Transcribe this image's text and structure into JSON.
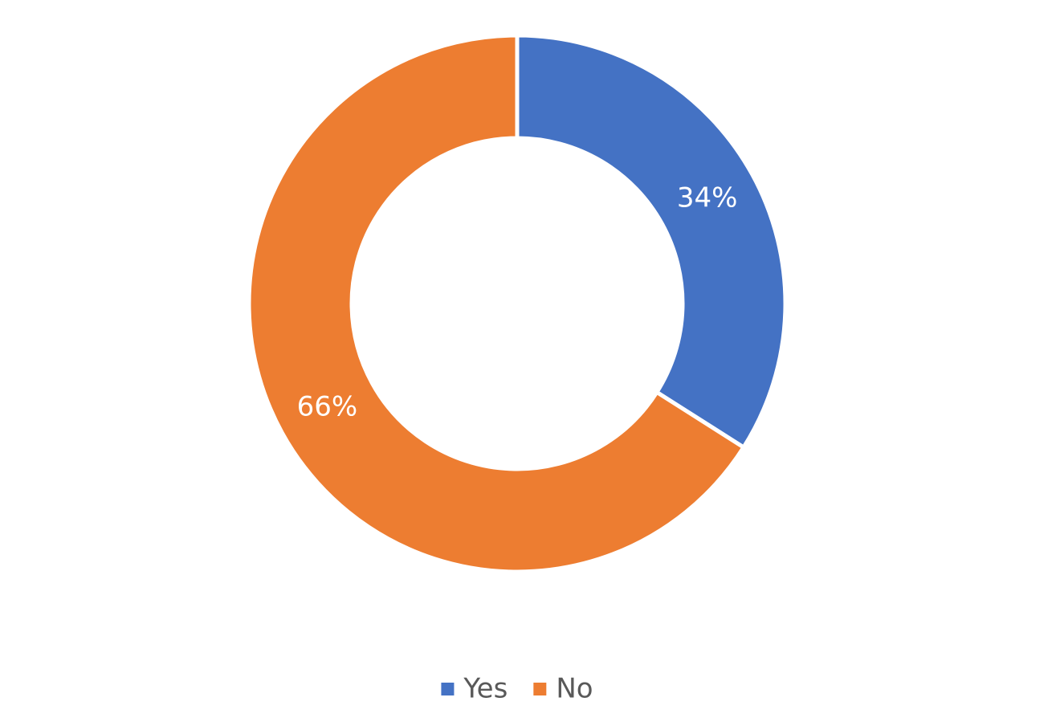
{
  "chart_data": {
    "type": "donut",
    "categories": [
      "Yes",
      "No"
    ],
    "values": [
      34,
      66
    ],
    "value_labels": [
      "34%",
      "66%"
    ],
    "colors": [
      "#4472c4",
      "#ed7d31"
    ],
    "legend": "bottom"
  }
}
